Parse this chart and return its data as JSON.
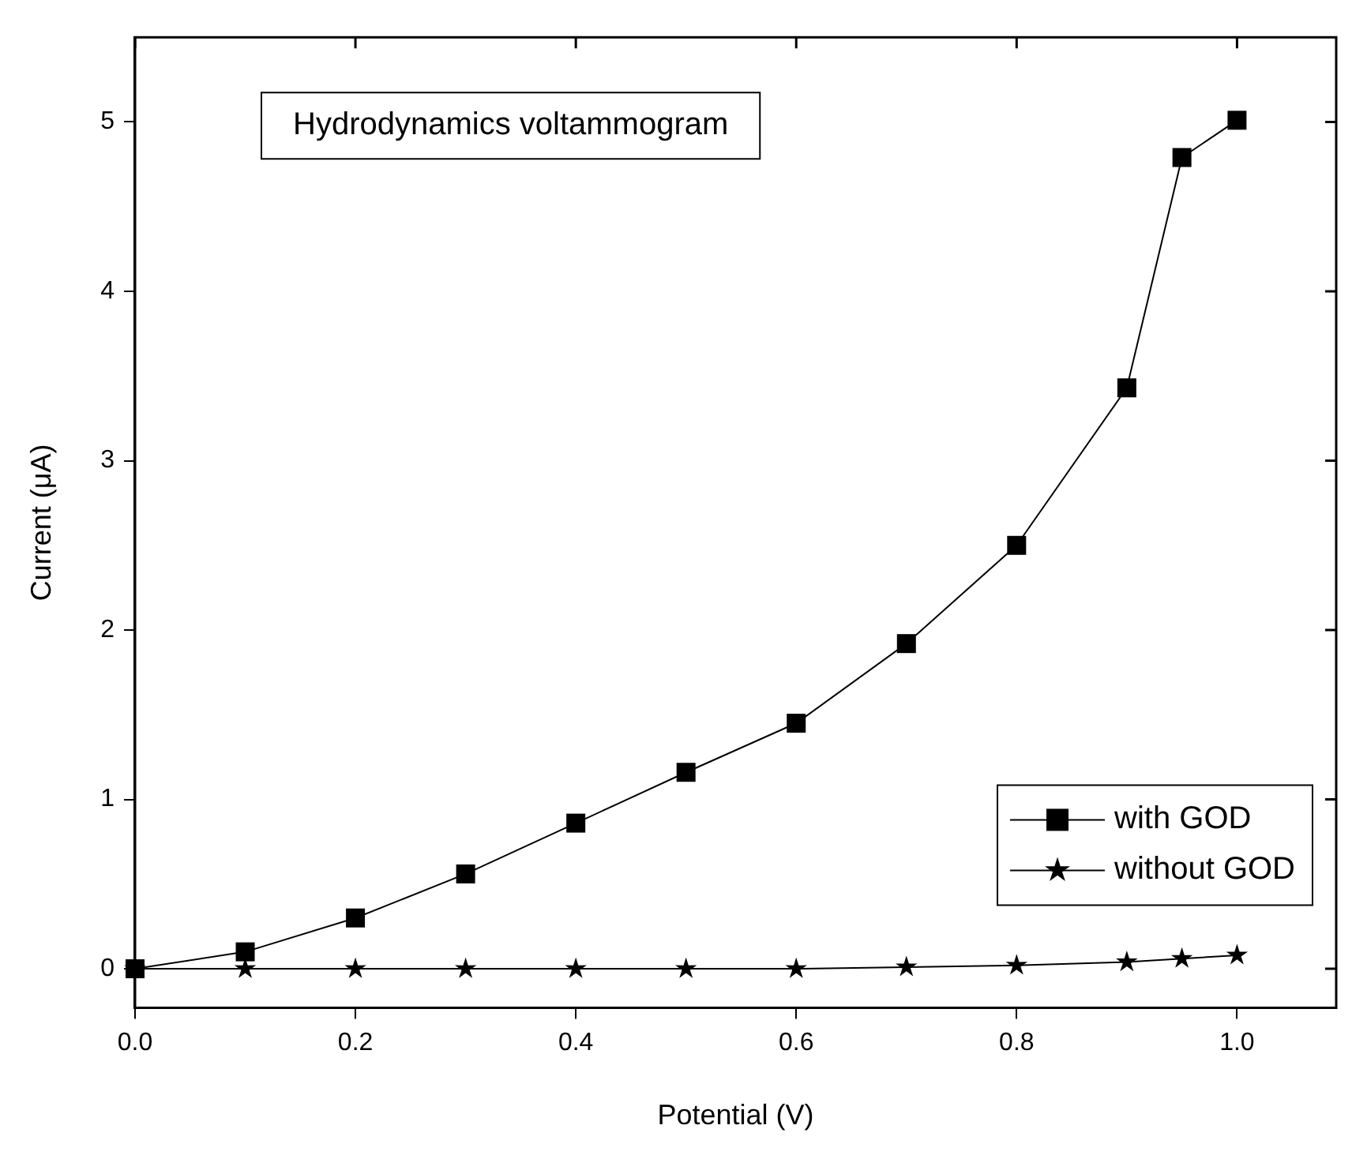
{
  "chart_data": {
    "type": "line",
    "title": "Hydrodynamics voltammogram",
    "xlabel": "Potential (V)",
    "ylabel": "Current (μA)",
    "x": [
      0,
      0.1,
      0.2,
      0.3,
      0.4,
      0.5,
      0.6,
      0.7,
      0.8,
      0.9,
      0.95,
      1.0
    ],
    "series": [
      {
        "name": "with GOD",
        "color": "#000000",
        "marker": "square",
        "values": [
          0,
          0.1,
          0.3,
          0.56,
          0.86,
          1.16,
          1.45,
          1.92,
          2.5,
          3.43,
          4.79,
          5.01
        ]
      },
      {
        "name": "without GOD",
        "color": "#000000",
        "marker": "star",
        "values": [
          0,
          0,
          0,
          0,
          0,
          0,
          0,
          0.01,
          0.02,
          0.04,
          0.06,
          0.08
        ]
      }
    ],
    "xlim": [
      0,
      1.09
    ],
    "xticks": [
      {
        "value": 0,
        "label": "0.0"
      },
      {
        "value": 0.2,
        "label": "0.2"
      },
      {
        "value": 0.4,
        "label": "0.4"
      },
      {
        "value": 0.6,
        "label": "0.6"
      },
      {
        "value": 0.8,
        "label": "0.8"
      },
      {
        "value": 1,
        "label": "1.0"
      }
    ],
    "ylim": [
      -0.23,
      5.5
    ],
    "yticks": [
      0,
      1,
      2,
      3,
      4,
      5
    ],
    "grid": false,
    "legend": "bottom right",
    "line_style": "solid"
  }
}
